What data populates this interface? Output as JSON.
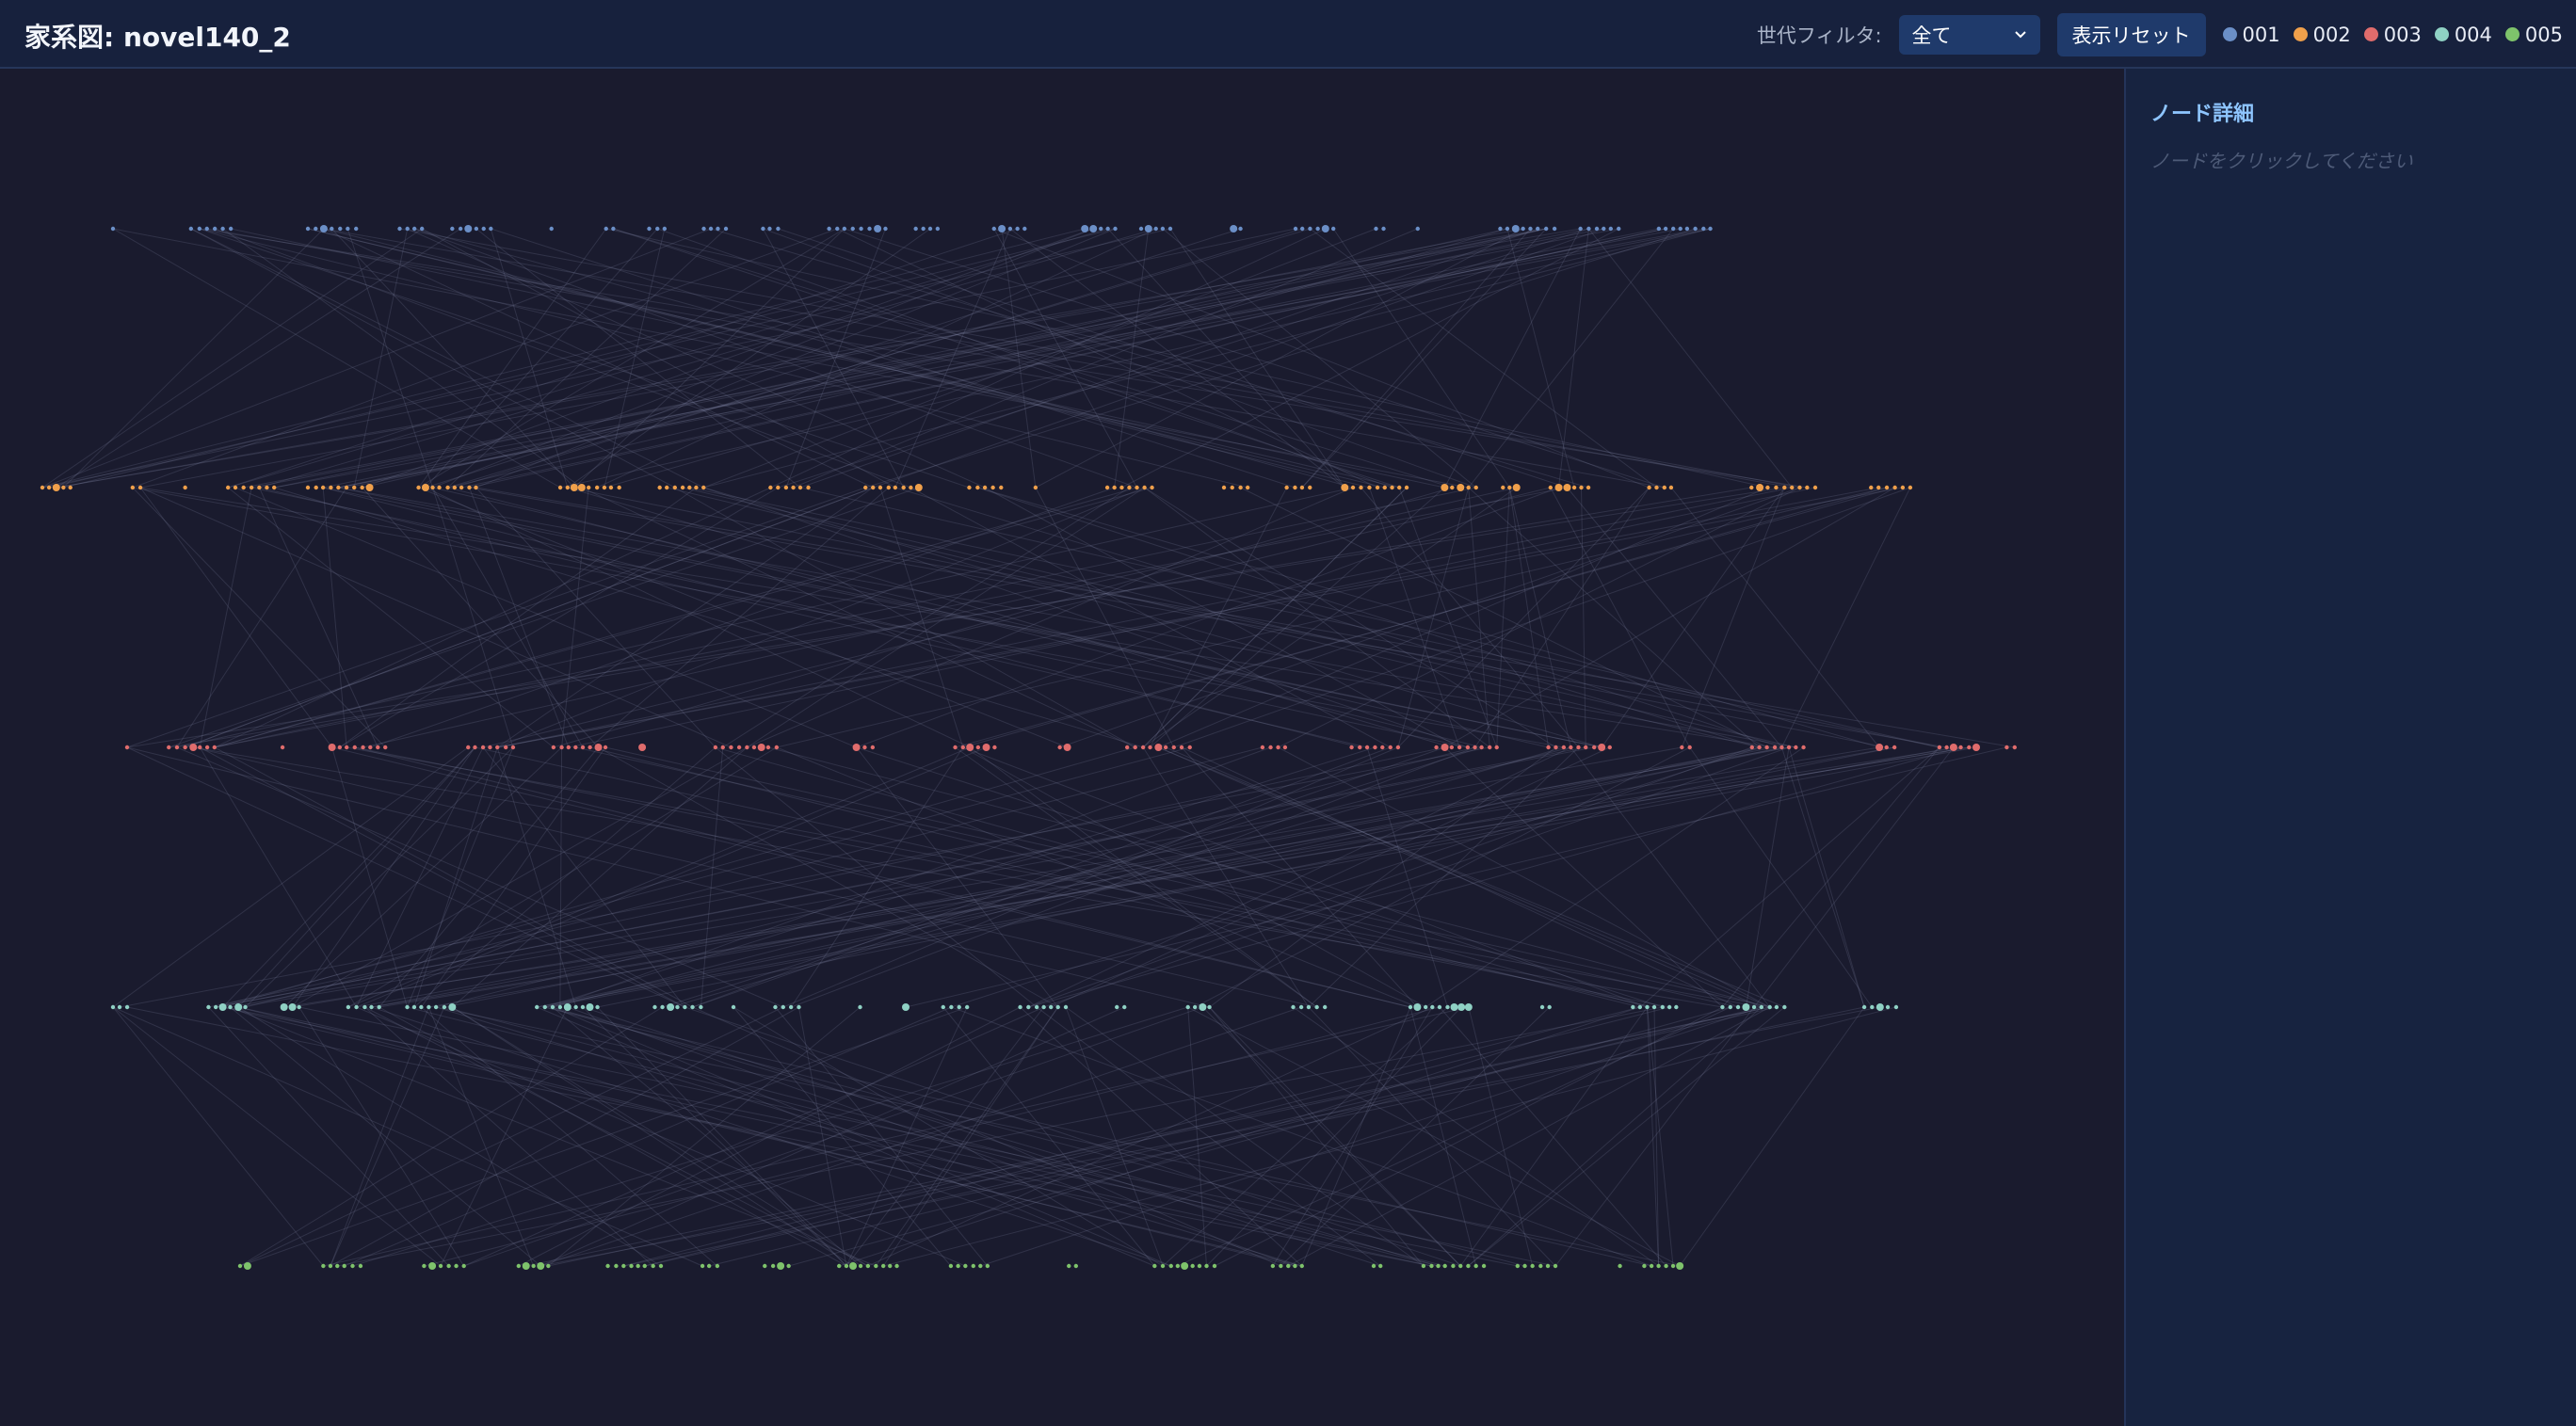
{
  "header": {
    "title": "家系図: novel140_2",
    "filter_label": "世代フィルタ:",
    "filter_value": "全て",
    "reset_button": "表示リセット",
    "legend": [
      "001",
      "002",
      "003",
      "004",
      "005"
    ]
  },
  "panel": {
    "title": "ノード詳細",
    "placeholder": "ノードをクリックしてください"
  }
}
